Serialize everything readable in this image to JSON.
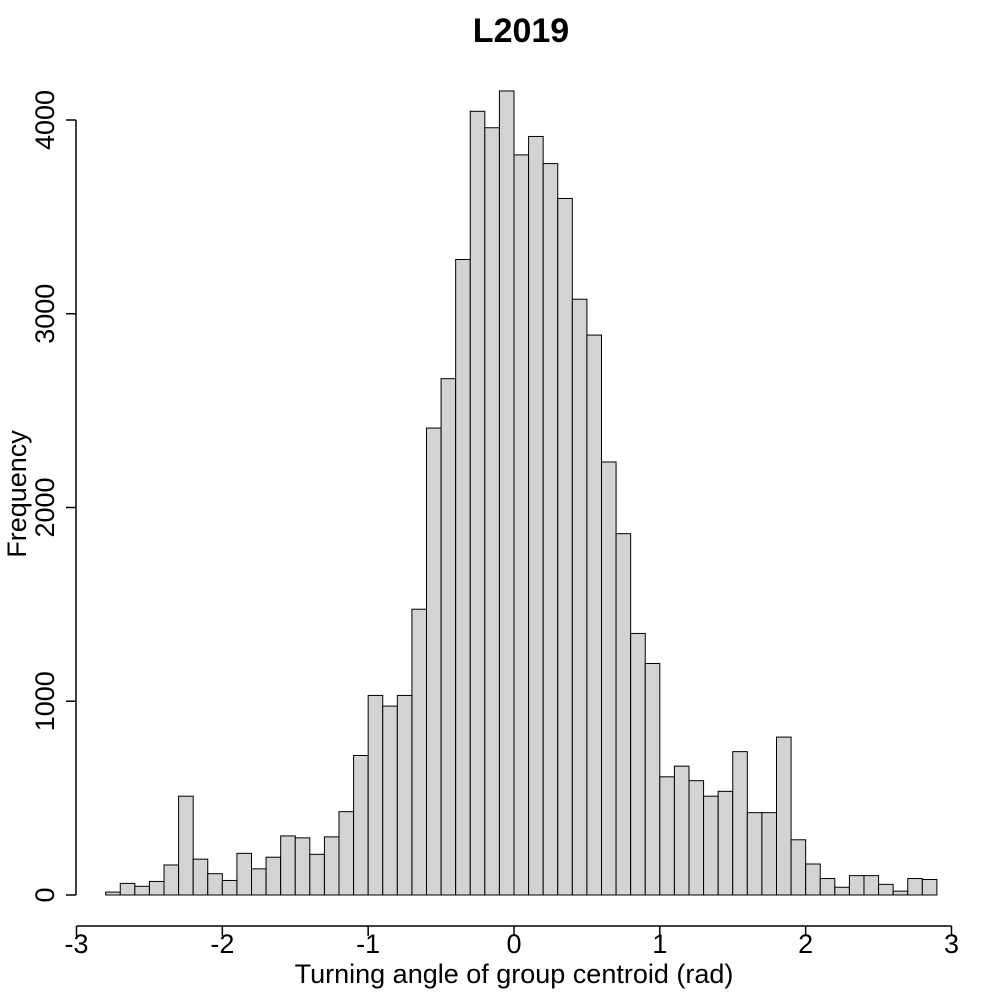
{
  "chart_data": {
    "type": "bar",
    "title": "L2019",
    "xlabel": "Turning angle of group centroid (rad)",
    "ylabel": "Frequency",
    "xlim": [
      -3,
      3
    ],
    "ylim": [
      0,
      4200
    ],
    "xticks": [
      -3,
      -2,
      -1,
      0,
      1,
      2,
      3
    ],
    "yticks": [
      0,
      1000,
      2000,
      3000,
      4000
    ],
    "grid": false,
    "bin_width": 0.1,
    "bin_start": -2.8,
    "values": [
      15,
      60,
      45,
      70,
      155,
      510,
      185,
      110,
      75,
      215,
      135,
      195,
      305,
      295,
      210,
      300,
      430,
      720,
      1030,
      975,
      1030,
      1475,
      2410,
      2665,
      3280,
      4045,
      3960,
      4150,
      3820,
      3915,
      3775,
      3595,
      3075,
      2890,
      2235,
      1865,
      1350,
      1195,
      610,
      665,
      590,
      510,
      535,
      740,
      425,
      425,
      815,
      285,
      160,
      85,
      40,
      100,
      100,
      55,
      20,
      85,
      80
    ]
  }
}
